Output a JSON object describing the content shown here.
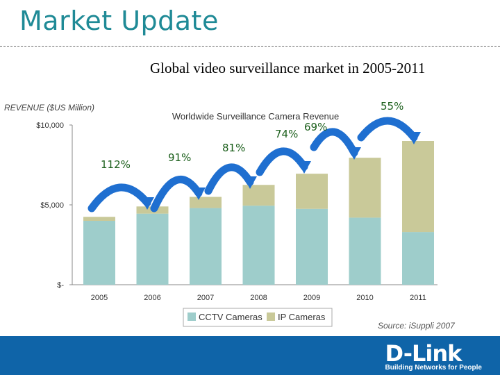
{
  "header": {
    "title": "Market Update",
    "subtitle": "Global video surveillance market in 2005-2011"
  },
  "revenue_label": "REVENUE ($US Million)",
  "source": "Source: iSuppli 2007",
  "footer": {
    "logo": "D-Link",
    "tagline": "Building Networks for People"
  },
  "colors": {
    "cctv": "#9ecdcb",
    "ip": "#c9c999",
    "arrow": "#1f6fd0",
    "growth": "#1a5e1a",
    "title": "#1f8a96"
  },
  "chart_data": {
    "type": "bar",
    "stacked": true,
    "title": "Worldwide Surveillance Camera Revenue",
    "categories": [
      "2005",
      "2006",
      "2007",
      "2008",
      "2009",
      "2010",
      "2011"
    ],
    "series": [
      {
        "name": "CCTV Cameras",
        "values": [
          4000,
          4450,
          4800,
          4950,
          4750,
          4200,
          3300
        ]
      },
      {
        "name": "IP Cameras",
        "values": [
          250,
          450,
          700,
          1300,
          2200,
          3750,
          5700
        ]
      }
    ],
    "ylim": [
      0,
      10000
    ],
    "yticks": [
      {
        "value": 0,
        "label": "$-"
      },
      {
        "value": 5000,
        "label": "$5,000"
      },
      {
        "value": 10000,
        "label": "$10,000"
      }
    ],
    "growth_labels": [
      "112%",
      "91%",
      "81%",
      "74%",
      "69%",
      "55%"
    ],
    "legend_position": "bottom"
  }
}
